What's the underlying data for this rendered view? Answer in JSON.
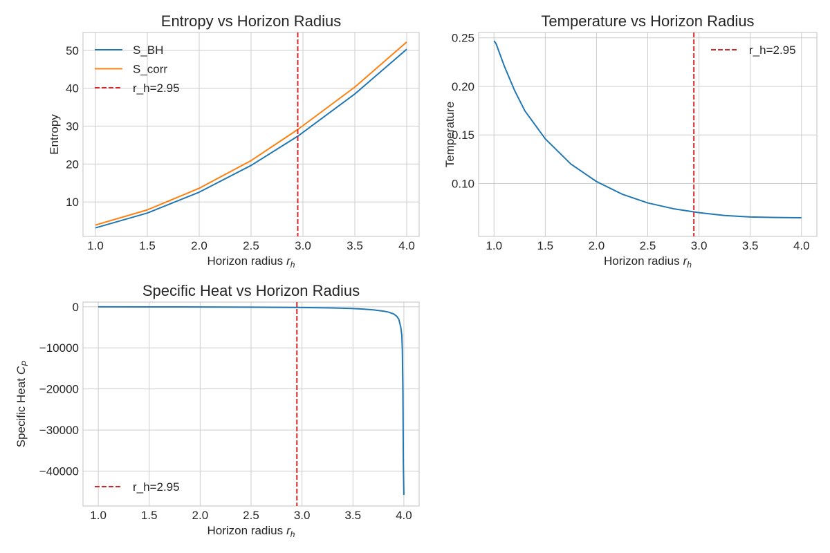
{
  "chart_data": [
    {
      "id": "entropy",
      "type": "line",
      "title": "Entropy vs Horizon Radius",
      "xlabel": "Horizon radius",
      "xlabel_sym": "r",
      "xlabel_sub": "h",
      "ylabel": "Entropy",
      "ylabel_sym": "",
      "ylabel_sub": "",
      "xlim": [
        0.88,
        4.12
      ],
      "ylim": [
        0.9,
        54.7
      ],
      "xticks": [
        1.0,
        1.5,
        2.0,
        2.5,
        3.0,
        3.5,
        4.0
      ],
      "xtick_labels": [
        "1.0",
        "1.5",
        "2.0",
        "2.5",
        "3.0",
        "3.5",
        "4.0"
      ],
      "yticks": [
        10,
        20,
        30,
        40,
        50
      ],
      "ytick_labels": [
        "10",
        "20",
        "30",
        "40",
        "50"
      ],
      "grid": true,
      "legend": "upper-left",
      "series": [
        {
          "name": "S_BH",
          "color": "#1f77b4",
          "dash": "",
          "x": [
            1.0,
            1.5,
            2.0,
            2.5,
            2.95,
            3.5,
            4.0
          ],
          "y": [
            3.14,
            7.07,
            12.57,
            19.63,
            27.34,
            38.48,
            50.27
          ]
        },
        {
          "name": "S_corr",
          "color": "#ff7f0e",
          "dash": "",
          "x": [
            1.0,
            1.5,
            2.0,
            2.5,
            2.95,
            3.5,
            4.0
          ],
          "y": [
            3.9,
            7.9,
            13.6,
            20.9,
            29.1,
            40.3,
            52.2
          ]
        }
      ],
      "vline": {
        "x": 2.95,
        "name": "r_h=2.95",
        "color": "#d62728"
      }
    },
    {
      "id": "temperature",
      "type": "line",
      "title": "Temperature vs Horizon Radius",
      "xlabel": "Horizon radius",
      "xlabel_sym": "r",
      "xlabel_sub": "h",
      "ylabel": "Temperature",
      "ylabel_sym": "",
      "ylabel_sub": "",
      "xlim": [
        0.85,
        4.15
      ],
      "ylim": [
        0.0455,
        0.2555
      ],
      "xticks": [
        1.0,
        1.5,
        2.0,
        2.5,
        3.0,
        3.5,
        4.0
      ],
      "xtick_labels": [
        "1.0",
        "1.5",
        "2.0",
        "2.5",
        "3.0",
        "3.5",
        "4.0"
      ],
      "yticks": [
        0.1,
        0.15,
        0.2,
        0.25
      ],
      "ytick_labels": [
        "0.10",
        "0.15",
        "0.20",
        "0.25"
      ],
      "grid": true,
      "legend": "upper-right",
      "series": [
        {
          "name": "",
          "color": "#1f77b4",
          "dash": "",
          "x": [
            1.0,
            1.02,
            1.1,
            1.2,
            1.3,
            1.5,
            1.75,
            2.0,
            2.25,
            2.5,
            2.75,
            3.0,
            3.25,
            3.5,
            3.75,
            4.0
          ],
          "y": [
            0.247,
            0.244,
            0.221,
            0.196,
            0.175,
            0.146,
            0.12,
            0.102,
            0.089,
            0.08,
            0.074,
            0.07,
            0.067,
            0.0655,
            0.065,
            0.0647
          ]
        }
      ],
      "vline": {
        "x": 2.95,
        "name": "r_h=2.95",
        "color": "#d62728"
      }
    },
    {
      "id": "specific-heat",
      "type": "line",
      "title": "Specific Heat vs Horizon Radius",
      "xlabel": "Horizon radius",
      "xlabel_sym": "r",
      "xlabel_sub": "h",
      "ylabel": "Specific Heat",
      "ylabel_sym": "C",
      "ylabel_sub": "P",
      "xlim": [
        0.85,
        4.15
      ],
      "ylim": [
        -48500,
        1150
      ],
      "xticks": [
        1.0,
        1.5,
        2.0,
        2.5,
        3.0,
        3.5,
        4.0
      ],
      "xtick_labels": [
        "1.0",
        "1.5",
        "2.0",
        "2.5",
        "3.0",
        "3.5",
        "4.0"
      ],
      "yticks": [
        0,
        -10000,
        -20000,
        -30000,
        -40000
      ],
      "ytick_labels": [
        "0",
        "−10000",
        "−20000",
        "−30000",
        "−40000"
      ],
      "grid": true,
      "legend": "lower-left",
      "series": [
        {
          "name": "",
          "color": "#1f77b4",
          "dash": "",
          "x": [
            1.0,
            1.5,
            2.0,
            2.5,
            3.0,
            3.3,
            3.5,
            3.6,
            3.7,
            3.8,
            3.85,
            3.9,
            3.93,
            3.95,
            3.97,
            3.98,
            3.985,
            3.99,
            3.995,
            4.0
          ],
          "y": [
            -5,
            -20,
            -45,
            -90,
            -180,
            -280,
            -420,
            -550,
            -750,
            -1050,
            -1300,
            -1750,
            -2300,
            -3000,
            -5000,
            -7000,
            -10500,
            -20000,
            -38000,
            -45800
          ]
        }
      ],
      "vline": {
        "x": 2.95,
        "name": "r_h=2.95",
        "color": "#d62728"
      }
    }
  ]
}
